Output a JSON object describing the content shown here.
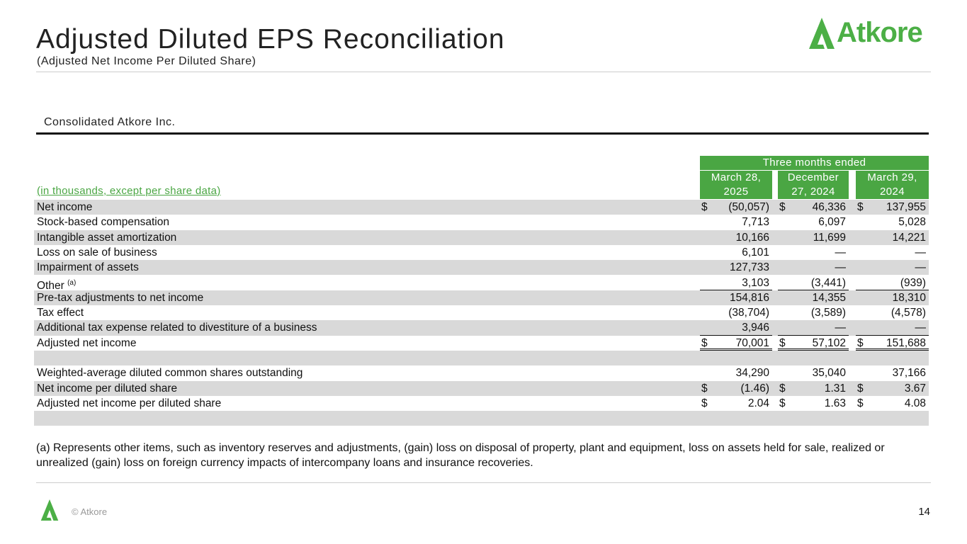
{
  "header": {
    "title": "Adjusted Diluted EPS Reconciliation",
    "subtitle": "(Adjusted Net Income Per Diluted Share)",
    "logo": "Atkore"
  },
  "section": "Consolidated Atkore Inc.",
  "table": {
    "units_label": "(in thousands, except per share data)",
    "group_header": "Three months ended",
    "columns": [
      {
        "line1": "March 28,",
        "line2": "2025"
      },
      {
        "line1": "December",
        "line2": "27, 2024"
      },
      {
        "line1": "March 29,",
        "line2": "2024"
      }
    ],
    "rows": [
      {
        "label": "Net income",
        "sup": "",
        "dollar": true,
        "values": [
          "(50,057)",
          "46,336",
          "137,955"
        ]
      },
      {
        "label": "Stock-based compensation",
        "sup": "",
        "dollar": false,
        "values": [
          "7,713",
          "6,097",
          "5,028"
        ]
      },
      {
        "label": "Intangible asset amortization",
        "sup": "",
        "dollar": false,
        "values": [
          "10,166",
          "11,699",
          "14,221"
        ]
      },
      {
        "label": "Loss on sale of business",
        "sup": "",
        "dollar": false,
        "values": [
          "6,101",
          "—",
          "—"
        ]
      },
      {
        "label": "Impairment of assets",
        "sup": "",
        "dollar": false,
        "values": [
          "127,733",
          "—",
          "—"
        ]
      },
      {
        "label": "Other",
        "sup": "(a)",
        "dollar": false,
        "values": [
          "3,103",
          "(3,441)",
          "(939)"
        ],
        "underline": "single"
      },
      {
        "label": "Pre-tax adjustments to net income",
        "sup": "",
        "dollar": false,
        "values": [
          "154,816",
          "14,355",
          "18,310"
        ]
      },
      {
        "label": "Tax effect",
        "sup": "",
        "dollar": false,
        "values": [
          "(38,704)",
          "(3,589)",
          "(4,578)"
        ]
      },
      {
        "label": "Additional tax expense related to divestiture of a business",
        "sup": "",
        "dollar": false,
        "values": [
          "3,946",
          "—",
          "—"
        ],
        "underline": "single"
      },
      {
        "label": "Adjusted net income",
        "sup": "",
        "dollar": true,
        "values": [
          "70,001",
          "57,102",
          "151,688"
        ],
        "underline": "double"
      },
      {
        "label": "",
        "sup": "",
        "dollar": false,
        "values": [
          "",
          "",
          ""
        ]
      },
      {
        "label": "Weighted-average diluted common shares outstanding",
        "sup": "",
        "dollar": false,
        "values": [
          "34,290",
          "35,040",
          "37,166"
        ]
      },
      {
        "label": "Net income per diluted share",
        "sup": "",
        "dollar": true,
        "values": [
          "(1.46)",
          "1.31",
          "3.67"
        ]
      },
      {
        "label": "Adjusted net income per diluted share",
        "sup": "",
        "dollar": true,
        "values": [
          "2.04",
          "1.63",
          "4.08"
        ]
      },
      {
        "label": "",
        "sup": "",
        "dollar": false,
        "values": [
          "",
          "",
          ""
        ]
      }
    ],
    "currency_symbol": "$"
  },
  "footnote": "(a) Represents other items, such as inventory reserves and adjustments, (gain) loss on disposal of property, plant and equipment, loss on assets held for sale, realized or unrealized (gain) loss on foreign currency impacts of intercompany loans and insurance recoveries.",
  "footer": {
    "copyright": "© Atkore",
    "page": "14"
  },
  "colors": {
    "brand_green": "#4aa643"
  }
}
